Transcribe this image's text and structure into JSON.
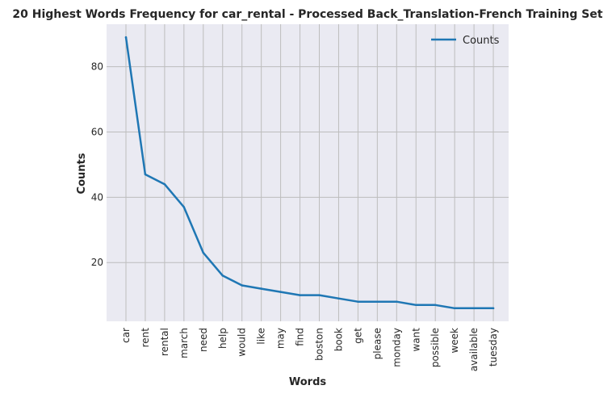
{
  "chart_data": {
    "type": "line",
    "title": "20 Highest Words Frequency for car_rental - Processed Back_Translation-French Training Set",
    "xlabel": "Words",
    "ylabel": "Counts",
    "categories": [
      "car",
      "rent",
      "rental",
      "march",
      "need",
      "help",
      "would",
      "like",
      "may",
      "find",
      "boston",
      "book",
      "get",
      "please",
      "monday",
      "want",
      "possible",
      "week",
      "available",
      "tuesday"
    ],
    "series": [
      {
        "name": "Counts",
        "values": [
          89,
          47,
          44,
          37,
          23,
          16,
          13,
          12,
          11,
          10,
          10,
          9,
          8,
          8,
          8,
          7,
          7,
          6,
          6,
          6
        ],
        "color": "#1f77b4"
      }
    ],
    "yticks": [
      20,
      40,
      60,
      80
    ],
    "ylim": [
      2,
      93
    ],
    "legend": "top-right",
    "grid": true,
    "colors": {
      "plot_background": "#eaeaf2",
      "grid": "#bdbdbd",
      "line": "#1f77b4"
    }
  }
}
